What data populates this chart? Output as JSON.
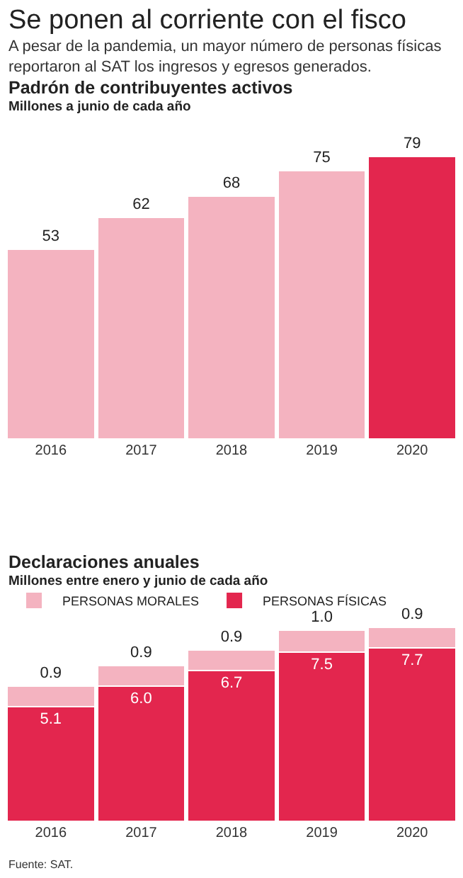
{
  "chart_data": [
    {
      "type": "other",
      "title": "Se ponen al corriente con el fisco",
      "subtitle": "A pesar de la pandemia, un mayor número de personas físicas\nreportaron al SAT los ingresos y egresos generados."
    },
    {
      "type": "bar",
      "title": "Padrón de contribuyentes activos",
      "subtitle": "Millones a junio de cada año",
      "categories": [
        "2016",
        "2017",
        "2018",
        "2019",
        "2020"
      ],
      "values": [
        53,
        62,
        68,
        75,
        79
      ],
      "colors": [
        "#f4b3c0",
        "#f4b3c0",
        "#f4b3c0",
        "#f4b3c0",
        "#e3264e"
      ],
      "data_labels": true
    },
    {
      "type": "bar",
      "title": "Declaraciones anuales",
      "subtitle": "Millones entre enero y junio de cada año",
      "categories": [
        "2016",
        "2017",
        "2018",
        "2019",
        "2020"
      ],
      "stacked": true,
      "legend": "top left",
      "series": [
        {
          "name": "PERSONAS FÍSICAS",
          "color": "#e3264e",
          "values": [
            5.1,
            6.0,
            6.7,
            7.5,
            7.7
          ],
          "value_labels": [
            "5.1",
            "6.0",
            "6.7",
            "7.5",
            "7.7"
          ]
        },
        {
          "name": "PERSONAS MORALES",
          "color": "#f4b3c0",
          "values": [
            0.9,
            0.9,
            0.9,
            1.0,
            0.9
          ],
          "value_labels": [
            "0.9",
            "0.9",
            "0.9",
            "1.0",
            "0.9"
          ]
        }
      ],
      "annotations": [
        "Fuente: SAT."
      ]
    }
  ]
}
